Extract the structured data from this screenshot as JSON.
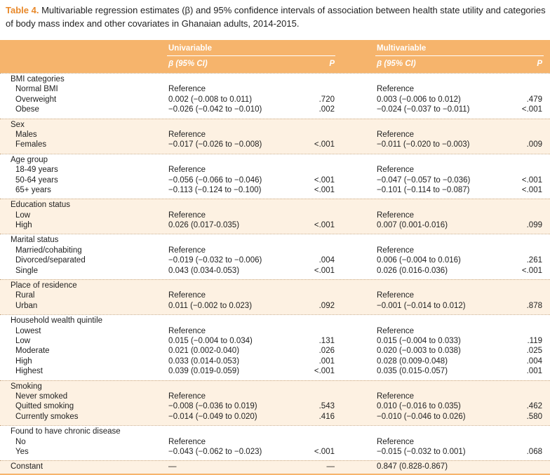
{
  "title": {
    "label": "Table 4.",
    "text": "Multivariable regression estimates (β) and 95% confidence intervals of association between health state utility and categories of body mass index and other covariates in Ghanaian adults, 2014-2015."
  },
  "header": {
    "groups": [
      "Univariable",
      "Multivariable"
    ],
    "columns": [
      "β (95% CI)",
      "P",
      "β (95% CI)",
      "P"
    ]
  },
  "sections": [
    {
      "name": "BMI categories",
      "rows": [
        [
          "Normal BMI",
          "Reference",
          null,
          "Reference",
          null
        ],
        [
          "Overweight",
          "0.002 (−0.008 to 0.011)",
          ".720",
          "0.003 (−0.006 to 0.012)",
          ".479"
        ],
        [
          "Obese",
          "−0.026 (−0.042 to −0.010)",
          ".002",
          "−0.024 (−0.037 to −0.011)",
          "<.001"
        ]
      ]
    },
    {
      "name": "Sex",
      "rows": [
        [
          "Males",
          "Reference",
          null,
          "Reference",
          null
        ],
        [
          "Females",
          "−0.017 (−0.026 to −0.008)",
          "<.001",
          "−0.011 (−0.020 to −0.003)",
          ".009"
        ]
      ]
    },
    {
      "name": "Age group",
      "rows": [
        [
          "18-49 years",
          "Reference",
          null,
          "Reference",
          null
        ],
        [
          "50-64 years",
          "−0.056 (−0.066 to −0.046)",
          "<.001",
          "−0.047 (−0.057 to −0.036)",
          "<.001"
        ],
        [
          "65+ years",
          "−0.113 (−0.124 to −0.100)",
          "<.001",
          "−0.101 (−0.114 to −0.087)",
          "<.001"
        ]
      ]
    },
    {
      "name": "Education status",
      "rows": [
        [
          "Low",
          "Reference",
          null,
          "Reference",
          null
        ],
        [
          "High",
          "0.026 (0.017-0.035)",
          "<.001",
          "0.007 (0.001-0.016)",
          ".099"
        ]
      ]
    },
    {
      "name": "Marital status",
      "rows": [
        [
          "Married/cohabiting",
          "Reference",
          null,
          "Reference",
          null
        ],
        [
          "Divorced/separated",
          "−0.019 (−0.032 to −0.006)",
          ".004",
          "0.006 (−0.004 to 0.016)",
          ".261"
        ],
        [
          "Single",
          "0.043 (0.034-0.053)",
          "<.001",
          "0.026 (0.016-0.036)",
          "<.001"
        ]
      ]
    },
    {
      "name": "Place of residence",
      "rows": [
        [
          "Rural",
          "Reference",
          null,
          "Reference",
          null
        ],
        [
          "Urban",
          "0.011 (−0.002 to 0.023)",
          ".092",
          "−0.001 (−0.014 to 0.012)",
          ".878"
        ]
      ]
    },
    {
      "name": "Household wealth quintile",
      "rows": [
        [
          "Lowest",
          "Reference",
          null,
          "Reference",
          null
        ],
        [
          "Low",
          "0.015 (−0.004 to 0.034)",
          ".131",
          "0.015 (−0.004 to 0.033)",
          ".119"
        ],
        [
          "Moderate",
          "0.021 (0.002-0.040)",
          ".026",
          "0.020 (−0.003 to 0.038)",
          ".025"
        ],
        [
          "High",
          "0.033 (0.014-0.053)",
          ".001",
          "0.028 (0.009-0.048)",
          ".004"
        ],
        [
          "Highest",
          "0.039 (0.019-0.059)",
          "<.001",
          "0.035 (0.015-0.057)",
          ".001"
        ]
      ]
    },
    {
      "name": "Smoking",
      "rows": [
        [
          "Never smoked",
          "Reference",
          null,
          "Reference",
          null
        ],
        [
          "Quitted smoking",
          "−0.008 (−0.036 to 0.019)",
          ".543",
          "0.010 (−0.016 to 0.035)",
          ".462"
        ],
        [
          "Currently smokes",
          "−0.014 (−0.049 to 0.020)",
          ".416",
          "−0.010 (−0.046 to 0.026)",
          ".580"
        ]
      ]
    },
    {
      "name": "Found to have chronic disease",
      "rows": [
        [
          "No",
          "Reference",
          null,
          "Reference",
          null
        ],
        [
          "Yes",
          "−0.043 (−0.062 to −0.023)",
          "<.001",
          "−0.015 (−0.032 to 0.001)",
          ".068"
        ]
      ]
    }
  ],
  "constant": [
    "Constant",
    "—",
    "—",
    "0.847 (0.828-0.867)",
    null
  ]
}
